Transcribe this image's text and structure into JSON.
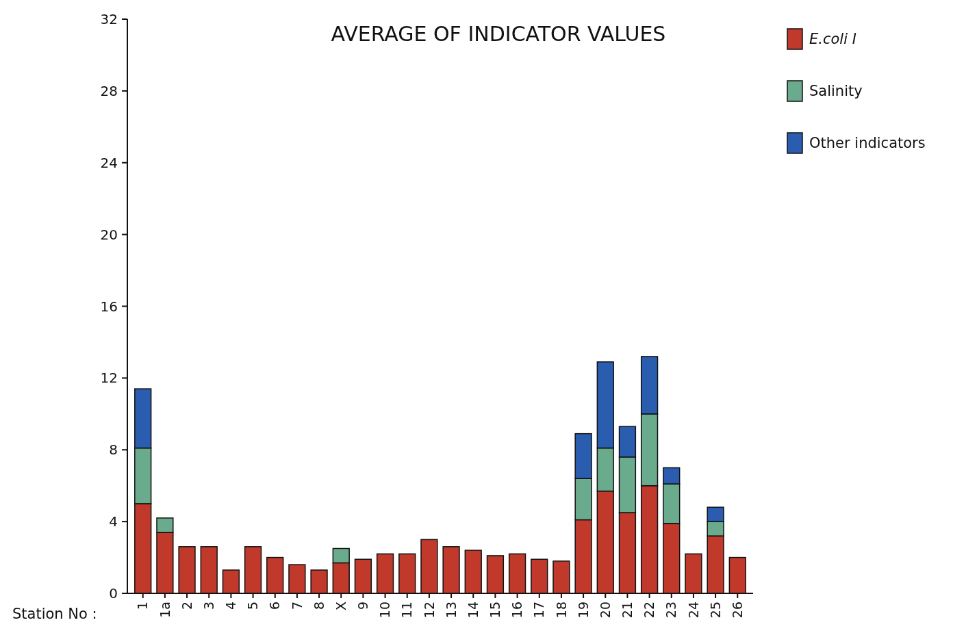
{
  "chart_data": {
    "type": "bar",
    "title": "AVERAGE OF INDICATOR VALUES",
    "xlabel": "Station No :",
    "stacked": true,
    "legend": "top right",
    "categories": [
      "1",
      "1a",
      "2",
      "3",
      "4",
      "5",
      "6",
      "7",
      "8",
      "X",
      "9",
      "10",
      "11",
      "12",
      "13",
      "14",
      "15",
      "16",
      "17",
      "18",
      "19",
      "20",
      "21",
      "22",
      "23",
      "24",
      "25",
      "26"
    ],
    "series": [
      {
        "name": "E.coli I",
        "color": "#c0392b",
        "values": [
          5.0,
          3.4,
          2.6,
          2.6,
          1.3,
          2.6,
          2.0,
          1.6,
          1.3,
          1.7,
          1.9,
          2.2,
          2.2,
          3.0,
          2.6,
          2.4,
          2.1,
          2.2,
          1.9,
          1.8,
          4.1,
          5.7,
          4.5,
          6.0,
          3.9,
          2.2,
          3.2,
          2.0
        ]
      },
      {
        "name": "Salinity",
        "color": "#6aab8e",
        "values": [
          3.1,
          0.8,
          null,
          null,
          null,
          null,
          null,
          null,
          null,
          0.8,
          null,
          null,
          null,
          null,
          null,
          null,
          null,
          null,
          null,
          null,
          2.3,
          2.4,
          3.1,
          4.0,
          2.2,
          null,
          0.8,
          null
        ]
      },
      {
        "name": "Other indicators",
        "color": "#2a5db0",
        "values": [
          3.3,
          null,
          null,
          null,
          null,
          null,
          null,
          null,
          null,
          null,
          null,
          null,
          null,
          null,
          null,
          null,
          null,
          null,
          null,
          null,
          2.5,
          4.8,
          1.7,
          3.2,
          0.9,
          null,
          0.8,
          null
        ]
      }
    ],
    "ylim": [
      0,
      32
    ],
    "yticks": [
      0,
      4,
      8,
      12,
      16,
      20,
      24,
      28,
      32
    ]
  }
}
